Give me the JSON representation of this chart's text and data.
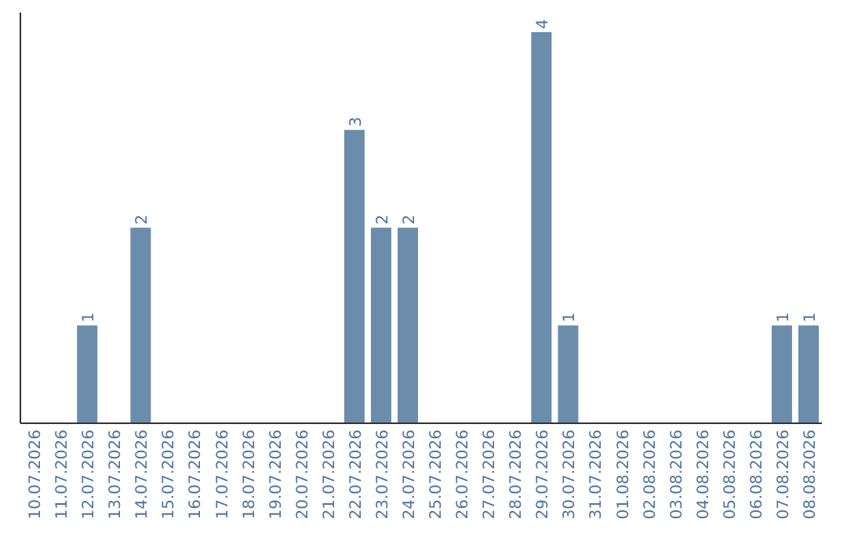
{
  "chart_data": {
    "type": "bar",
    "categories": [
      "10.07.2026",
      "11.07.2026",
      "12.07.2026",
      "13.07.2026",
      "14.07.2026",
      "15.07.2026",
      "16.07.2026",
      "17.07.2026",
      "18.07.2026",
      "19.07.2026",
      "20.07.2026",
      "21.07.2026",
      "22.07.2026",
      "23.07.2026",
      "24.07.2026",
      "25.07.2026",
      "26.07.2026",
      "27.07.2026",
      "28.07.2026",
      "29.07.2026",
      "30.07.2026",
      "31.07.2026",
      "01.08.2026",
      "02.08.2026",
      "03.08.2026",
      "04.08.2026",
      "05.08.2026",
      "06.08.2026",
      "07.08.2026",
      "08.08.2026"
    ],
    "values": [
      0,
      0,
      1,
      0,
      2,
      0,
      0,
      0,
      0,
      0,
      0,
      0,
      3,
      2,
      2,
      0,
      0,
      0,
      0,
      4,
      1,
      0,
      0,
      0,
      0,
      0,
      0,
      0,
      1,
      1
    ],
    "value_labels": [
      null,
      null,
      "1",
      null,
      "2",
      null,
      null,
      null,
      null,
      null,
      null,
      null,
      "3",
      "2",
      "2",
      null,
      null,
      null,
      null,
      "4",
      "1",
      null,
      null,
      null,
      null,
      null,
      null,
      null,
      "1",
      "1"
    ],
    "color": "#6b8caa"
  }
}
